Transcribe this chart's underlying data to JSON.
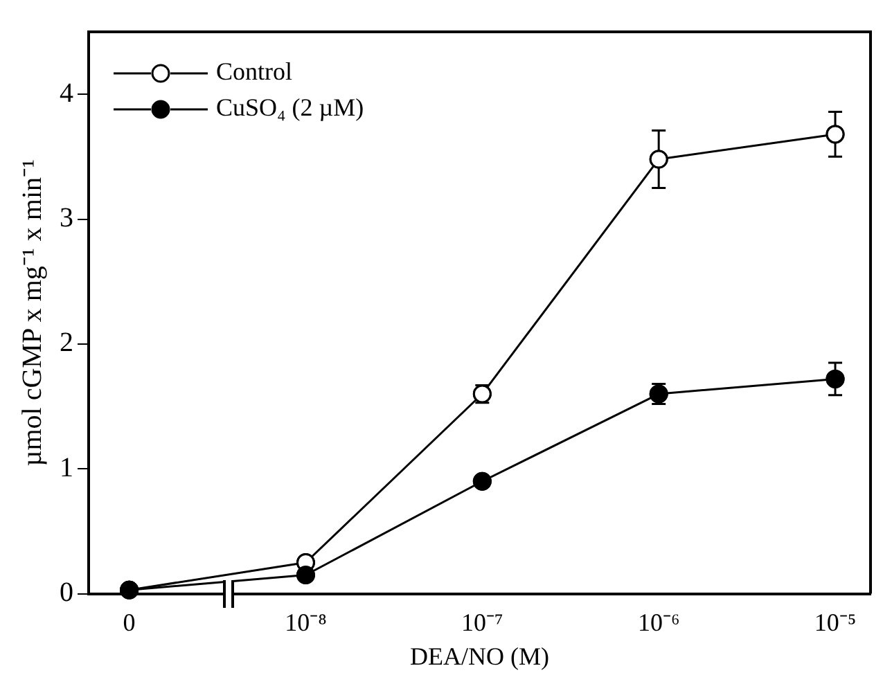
{
  "chart_data": {
    "type": "line",
    "xlabel": "DEA/NO (M)",
    "ylabel": "µmol cGMP x mg⁻¹ x min⁻¹",
    "categories": [
      "0",
      "10⁻⁸",
      "10⁻⁷",
      "10⁻⁶",
      "10⁻⁵"
    ],
    "series": [
      {
        "name": "Control",
        "color": "#ffffff",
        "values": [
          0.03,
          0.25,
          1.6,
          3.48,
          3.68
        ],
        "errors": [
          null,
          null,
          0.07,
          0.23,
          0.18
        ]
      },
      {
        "name": "CuSO₄ (2 µM)",
        "color": "#000000",
        "values": [
          0.03,
          0.15,
          0.9,
          1.6,
          1.72
        ],
        "errors": [
          null,
          null,
          null,
          0.08,
          0.13
        ]
      }
    ],
    "ylim": [
      0,
      4.5
    ],
    "yticks": [
      0,
      1,
      2,
      3,
      4
    ],
    "marker": "circle",
    "line_style": "solid",
    "legend": "top left",
    "grid": false
  }
}
